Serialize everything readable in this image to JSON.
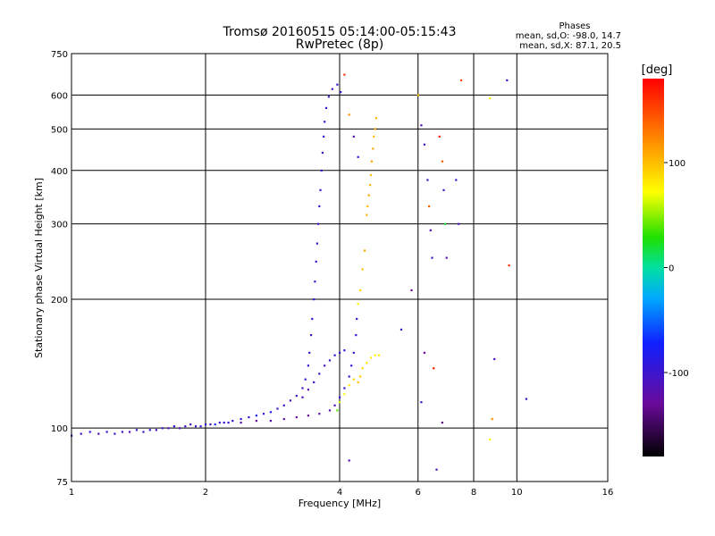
{
  "chart_data": {
    "type": "scatter",
    "title": "Tromsø 20160515 05:14:00-05:15:43",
    "subtitle": "RwPretec (8p)",
    "xlabel": "Frequency [MHz]",
    "ylabel": "Stationary phase Virtual Height [km]",
    "x_scale": "log",
    "y_scale": "log",
    "xlim": [
      1,
      16
    ],
    "ylim": [
      75,
      750
    ],
    "x_ticks": [
      1,
      2,
      4,
      6,
      8,
      10,
      16
    ],
    "y_ticks": [
      75,
      100,
      200,
      300,
      400,
      500,
      600,
      750
    ],
    "x_grid": [
      2,
      4,
      6,
      8,
      10
    ],
    "y_grid": [
      100,
      200,
      300,
      400,
      500,
      600
    ],
    "grid": true,
    "phases": {
      "heading": "Phases",
      "line_o": "mean, sd,O: -98.0, 14.7",
      "line_x": "mean, sd,X:  87.1, 20.5"
    },
    "colorbar": {
      "label": "[deg]",
      "range": [
        -180,
        180
      ],
      "ticks": [
        100,
        0,
        -100
      ]
    },
    "series": [
      {
        "points": [
          [
            1.0,
            96,
            -100
          ],
          [
            1.05,
            97,
            -105
          ],
          [
            1.1,
            98,
            -95
          ],
          [
            1.15,
            97,
            -110
          ],
          [
            1.2,
            98,
            -100
          ],
          [
            1.25,
            97,
            -100
          ],
          [
            1.3,
            98,
            -105
          ],
          [
            1.35,
            98,
            -110
          ],
          [
            1.4,
            99,
            -100
          ],
          [
            1.45,
            98,
            -100
          ],
          [
            1.5,
            99,
            -95
          ],
          [
            1.55,
            99,
            -105
          ],
          [
            1.6,
            100,
            -100
          ],
          [
            1.65,
            100,
            -110
          ],
          [
            1.7,
            101,
            -100
          ],
          [
            1.75,
            100,
            -115
          ],
          [
            1.8,
            101,
            -100
          ],
          [
            1.85,
            102,
            -105
          ],
          [
            1.9,
            101,
            -100
          ],
          [
            1.95,
            101,
            -95
          ],
          [
            2.0,
            102,
            -100
          ],
          [
            2.05,
            102,
            -105
          ],
          [
            2.1,
            102,
            -80
          ],
          [
            2.15,
            103,
            -100
          ],
          [
            2.2,
            103,
            -95
          ],
          [
            2.25,
            103,
            -90
          ],
          [
            2.3,
            104,
            -100
          ],
          [
            2.4,
            105,
            -85
          ],
          [
            2.5,
            106,
            -90
          ],
          [
            2.6,
            107,
            -80
          ],
          [
            2.7,
            108,
            -95
          ],
          [
            2.8,
            109,
            -85
          ],
          [
            2.9,
            111,
            -100
          ],
          [
            3.0,
            113,
            -105
          ],
          [
            3.1,
            116,
            -110
          ],
          [
            3.2,
            119,
            -100
          ],
          [
            3.3,
            124,
            -105
          ],
          [
            3.35,
            130,
            -100
          ],
          [
            3.4,
            140,
            -95
          ],
          [
            3.42,
            150,
            -100
          ],
          [
            3.45,
            165,
            -105
          ],
          [
            3.47,
            180,
            -100
          ],
          [
            3.5,
            200,
            -95
          ],
          [
            3.52,
            220,
            -100
          ],
          [
            3.54,
            245,
            -90
          ],
          [
            3.56,
            270,
            -100
          ],
          [
            3.58,
            300,
            -105
          ],
          [
            3.6,
            330,
            -100
          ],
          [
            3.62,
            360,
            -95
          ],
          [
            3.64,
            400,
            -100
          ],
          [
            3.66,
            440,
            -105
          ],
          [
            3.68,
            480,
            -100
          ],
          [
            3.7,
            520,
            -95
          ],
          [
            3.73,
            560,
            -90
          ],
          [
            3.78,
            595,
            -100
          ],
          [
            3.85,
            620,
            -105
          ],
          [
            3.95,
            635,
            -100
          ],
          [
            4.02,
            610,
            -95
          ]
        ],
        "style": "o-trace"
      },
      {
        "points": [
          [
            2.4,
            103,
            -120
          ],
          [
            2.6,
            104,
            -125
          ],
          [
            2.8,
            104,
            -115
          ],
          [
            3.0,
            105,
            -120
          ],
          [
            3.2,
            106,
            -125
          ],
          [
            3.4,
            107,
            -130
          ],
          [
            3.6,
            108,
            -120
          ],
          [
            3.8,
            110,
            -115
          ],
          [
            3.9,
            113,
            -110
          ],
          [
            4.0,
            118,
            -100
          ],
          [
            4.1,
            124,
            -100
          ],
          [
            4.2,
            132,
            -95
          ],
          [
            4.25,
            140,
            -90
          ],
          [
            4.3,
            150,
            -100
          ],
          [
            4.35,
            165,
            -90
          ],
          [
            4.37,
            180,
            -95
          ],
          [
            4.4,
            195,
            80
          ],
          [
            4.45,
            210,
            90
          ],
          [
            4.5,
            235,
            100
          ],
          [
            4.55,
            260,
            110
          ]
        ],
        "style": "x-trace-low"
      },
      {
        "points": [
          [
            3.3,
            118,
            -110
          ],
          [
            3.4,
            123,
            -115
          ],
          [
            3.5,
            128,
            -105
          ],
          [
            3.6,
            134,
            -100
          ],
          [
            3.7,
            140,
            -105
          ],
          [
            3.8,
            144,
            -100
          ],
          [
            3.9,
            148,
            -95
          ],
          [
            4.0,
            150,
            -100
          ],
          [
            4.1,
            152,
            -90
          ]
        ],
        "style": "o-upper-branch"
      },
      {
        "points": [
          [
            3.95,
            110,
            40
          ],
          [
            4.0,
            115,
            60
          ],
          [
            4.1,
            120,
            70
          ],
          [
            4.2,
            126,
            80
          ],
          [
            4.3,
            130,
            90
          ],
          [
            4.4,
            128,
            100
          ],
          [
            4.45,
            132,
            95
          ],
          [
            4.5,
            138,
            90
          ],
          [
            4.6,
            142,
            85
          ],
          [
            4.7,
            146,
            80
          ],
          [
            4.8,
            148,
            75
          ],
          [
            4.9,
            148,
            80
          ]
        ],
        "style": "x-trace-high"
      },
      {
        "points": [
          [
            4.6,
            315,
            105
          ],
          [
            4.62,
            330,
            100
          ],
          [
            4.65,
            350,
            110
          ],
          [
            4.68,
            370,
            105
          ],
          [
            4.7,
            390,
            100
          ],
          [
            4.72,
            420,
            110
          ],
          [
            4.75,
            450,
            105
          ],
          [
            4.77,
            480,
            100
          ],
          [
            4.8,
            500,
            110
          ],
          [
            4.83,
            530,
            105
          ]
        ],
        "style": "yellow-column"
      },
      {
        "points": [
          [
            4.1,
            670,
            160
          ],
          [
            4.2,
            540,
            120
          ],
          [
            4.3,
            480,
            -110
          ],
          [
            4.4,
            430,
            -100
          ],
          [
            6.0,
            600,
            100
          ],
          [
            6.1,
            510,
            -110
          ],
          [
            6.2,
            460,
            -105
          ],
          [
            6.3,
            380,
            -100
          ],
          [
            6.35,
            330,
            140
          ],
          [
            6.4,
            290,
            -110
          ],
          [
            6.45,
            250,
            -105
          ],
          [
            6.7,
            480,
            170
          ],
          [
            6.8,
            420,
            140
          ],
          [
            6.85,
            360,
            -100
          ],
          [
            6.9,
            300,
            20
          ],
          [
            6.95,
            250,
            -115
          ],
          [
            7.5,
            650,
            150
          ],
          [
            7.3,
            380,
            -100
          ],
          [
            7.4,
            300,
            -110
          ],
          [
            8.7,
            590,
            80
          ],
          [
            9.5,
            650,
            -105
          ],
          [
            9.6,
            240,
            160
          ],
          [
            8.9,
            145,
            -110
          ],
          [
            10.5,
            117,
            -100
          ],
          [
            8.8,
            105,
            120
          ],
          [
            8.7,
            94,
            70
          ],
          [
            6.2,
            150,
            -130
          ],
          [
            6.5,
            138,
            170
          ],
          [
            6.1,
            115,
            -100
          ],
          [
            6.8,
            103,
            -140
          ],
          [
            6.6,
            80,
            -110
          ],
          [
            5.5,
            170,
            -100
          ],
          [
            4.2,
            84,
            -120
          ],
          [
            5.8,
            210,
            -130
          ]
        ],
        "style": "scatter"
      }
    ]
  }
}
